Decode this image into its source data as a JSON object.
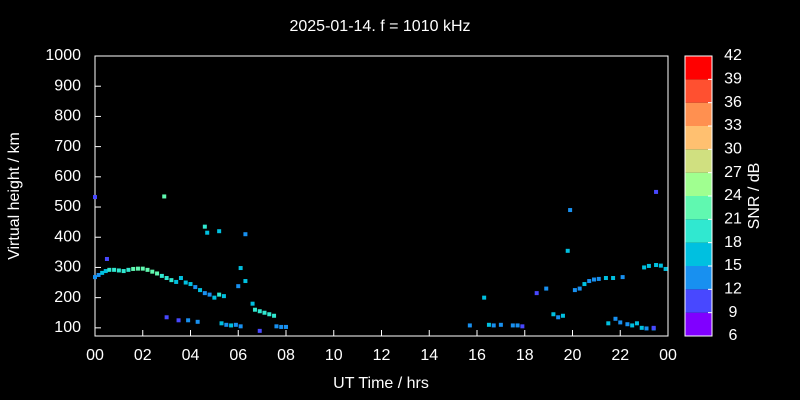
{
  "chart_data": {
    "type": "scatter",
    "title": "2025-01-14. f = 1010 kHz",
    "x_label": "UT Time / hrs",
    "y_label": "Virtual height / km",
    "colorbar_label": "SNR / dB",
    "x": [
      0.0,
      0.15,
      0.3,
      0.45,
      0.6,
      0.8,
      1.0,
      1.2,
      1.4,
      1.6,
      1.8,
      2.0,
      2.2,
      2.4,
      2.6,
      2.8,
      3.0,
      3.2,
      3.4,
      3.6,
      3.8,
      4.0,
      4.2,
      4.4,
      4.6,
      4.8,
      5.0,
      5.2,
      5.4,
      0.0,
      0.5,
      2.9,
      4.6,
      4.7,
      5.2,
      6.3,
      6.1,
      6.3,
      6.0,
      3.0,
      3.5,
      3.9,
      4.3,
      5.3,
      5.5,
      5.7,
      5.9,
      6.1,
      6.6,
      6.7,
      6.9,
      7.1,
      7.3,
      7.5,
      7.6,
      7.8,
      8.0,
      6.9,
      15.7,
      16.3,
      16.5,
      16.7,
      17.0,
      17.5,
      17.7,
      17.9,
      18.5,
      18.9,
      19.2,
      19.4,
      19.6,
      19.8,
      19.9,
      20.1,
      20.3,
      20.5,
      20.7,
      20.9,
      21.1,
      21.4,
      21.7,
      22.1,
      21.5,
      21.8,
      22.0,
      22.3,
      22.5,
      22.7,
      22.9,
      23.1,
      23.4,
      23.0,
      23.2,
      23.5,
      23.7,
      23.9,
      23.5,
      23.4
    ],
    "y": [
      268,
      275,
      282,
      288,
      292,
      292,
      290,
      288,
      292,
      295,
      296,
      296,
      292,
      286,
      280,
      272,
      265,
      258,
      252,
      265,
      250,
      245,
      235,
      225,
      215,
      210,
      200,
      210,
      205,
      533,
      328,
      535,
      435,
      415,
      420,
      410,
      298,
      255,
      238,
      135,
      125,
      125,
      120,
      115,
      110,
      108,
      110,
      105,
      180,
      160,
      155,
      150,
      145,
      140,
      105,
      103,
      103,
      90,
      108,
      200,
      110,
      108,
      110,
      108,
      108,
      105,
      215,
      230,
      145,
      135,
      140,
      355,
      490,
      225,
      230,
      245,
      255,
      260,
      262,
      265,
      265,
      268,
      115,
      130,
      118,
      112,
      108,
      115,
      100,
      98,
      98,
      300,
      305,
      308,
      306,
      295,
      550,
      100
    ],
    "snr": [
      14,
      14,
      15,
      17,
      18,
      18,
      19,
      19,
      20,
      21,
      22,
      23,
      22,
      23,
      21,
      20,
      19,
      18,
      17,
      16,
      16,
      15,
      14,
      15,
      14,
      13,
      16,
      18,
      15,
      11,
      11,
      21,
      19,
      17,
      16,
      13,
      16,
      16,
      14,
      11,
      11,
      14,
      13,
      15,
      13,
      16,
      14,
      12,
      16,
      20,
      18,
      20,
      18,
      19,
      14,
      13,
      12,
      11,
      12,
      15,
      15,
      14,
      13,
      13,
      12,
      11,
      11,
      12,
      15,
      14,
      15,
      15,
      12,
      14,
      13,
      15,
      13,
      14,
      12,
      15,
      15,
      14,
      15,
      13,
      12,
      13,
      15,
      16,
      15,
      14,
      12,
      15,
      16,
      16,
      17,
      17,
      11,
      11
    ],
    "xlim": [
      0,
      24
    ],
    "xticks": [
      {
        "value": 0,
        "label": "00"
      },
      {
        "value": 2,
        "label": "02"
      },
      {
        "value": 4,
        "label": "04"
      },
      {
        "value": 6,
        "label": "06"
      },
      {
        "value": 8,
        "label": "08"
      },
      10,
      12,
      14,
      16,
      18,
      20,
      22,
      {
        "value": 24,
        "label": "00"
      }
    ],
    "ylim": [
      73,
      1000
    ],
    "yticks": [
      100,
      200,
      300,
      400,
      500,
      600,
      700,
      800,
      900,
      1000
    ],
    "clim": [
      6,
      42
    ],
    "cticks": [
      6,
      9,
      12,
      15,
      18,
      21,
      24,
      27,
      30,
      33,
      36,
      39,
      42
    ],
    "colors": [
      "#8000ff",
      "#4848ff",
      "#1890f0",
      "#00c0e0",
      "#30e8d0",
      "#60f8b0",
      "#a0ff90",
      "#d0e080",
      "#ffc070",
      "#ff9050",
      "#ff5030",
      "#ff0000"
    ]
  }
}
